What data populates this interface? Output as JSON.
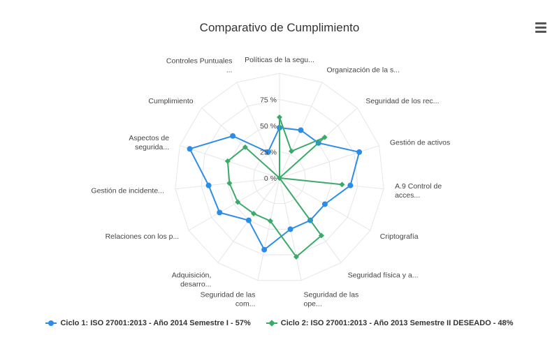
{
  "chart_data": {
    "type": "radar",
    "title": "Comparativo de Cumplimiento",
    "categories": [
      [
        "Políticas de la segu..."
      ],
      [
        "Organización de la s..."
      ],
      [
        "Seguridad de los rec..."
      ],
      [
        "Gestión de activos"
      ],
      [
        "A.9 Control de",
        "acces..."
      ],
      [
        "Criptografía"
      ],
      [
        "Seguridad física y a..."
      ],
      [
        "Seguridad de las",
        "ope..."
      ],
      [
        "Seguridad de las",
        "com..."
      ],
      [
        "Adquisición,",
        "desarro..."
      ],
      [
        "Relaciones con los p..."
      ],
      [
        "Gestión de incidente..."
      ],
      [
        "Aspectos de",
        "segurida..."
      ],
      [
        "Cumplimiento"
      ],
      [
        "Controles Puntuales",
        "..."
      ]
    ],
    "ylim": [
      0,
      100
    ],
    "tick_labels": [
      "0 %",
      "25 %",
      "50 %",
      "75 %"
    ],
    "tick_values": [
      0,
      25,
      50,
      75
    ],
    "series": [
      {
        "name": "Ciclo 1: ISO 27001:2013 - Año 2014 Semestre I - 57%",
        "color": "#2b8de8",
        "marker": "circle",
        "values": [
          48,
          50,
          50,
          80,
          68,
          50,
          50,
          50,
          70,
          50,
          66,
          68,
          90,
          60,
          27
        ]
      },
      {
        "name": "Ciclo 2: ISO 27001:2013 - Año 2013 Semestre II DESEADO - 48%",
        "color": "#3aaa6a",
        "marker": "diamond",
        "values": [
          58,
          28,
          58,
          0,
          60,
          0,
          68,
          77,
          42,
          42,
          46,
          48,
          52,
          44,
          0
        ]
      }
    ],
    "grid": true,
    "legend_position": "bottom"
  },
  "ui": {
    "menu_icon": "hamburger-menu-icon"
  }
}
